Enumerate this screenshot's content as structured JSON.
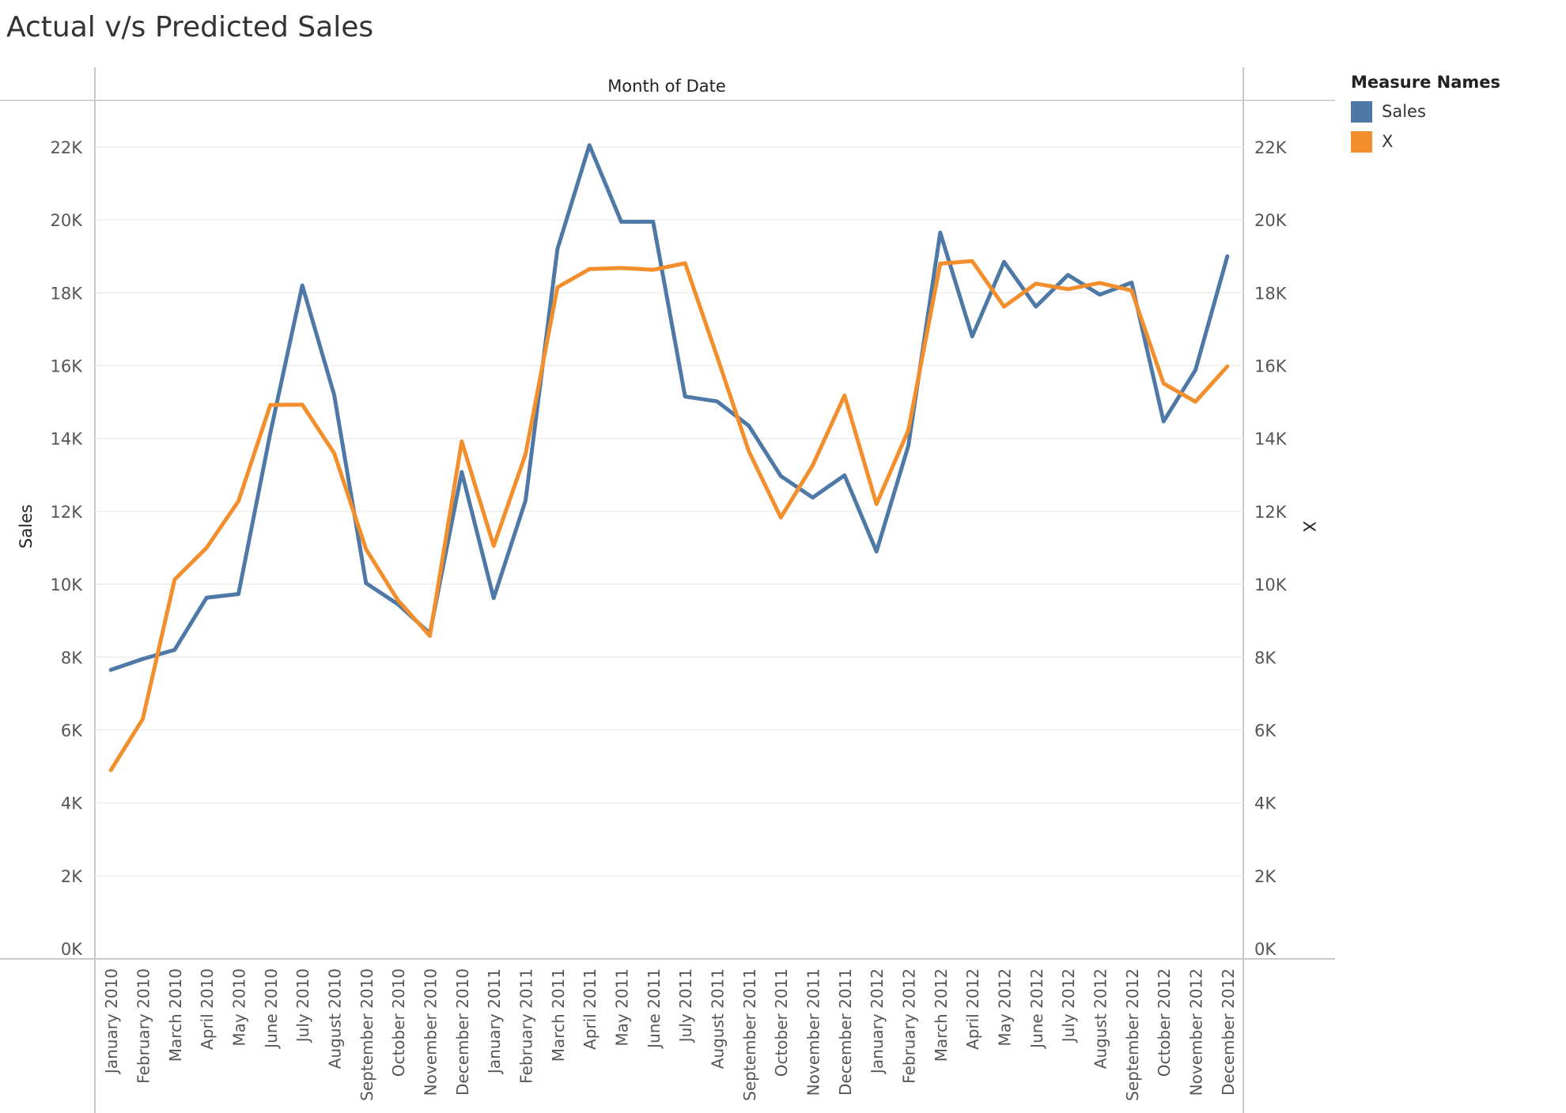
{
  "title": "Actual v/s Predicted Sales",
  "header_label": "Month of Date",
  "legend": {
    "title": "Measure Names",
    "items": [
      {
        "label": "Sales",
        "color": "#4e79a7"
      },
      {
        "label": "X",
        "color": "#f28e2b"
      }
    ]
  },
  "chart_data": {
    "type": "line",
    "title": "Actual v/s Predicted Sales",
    "xlabel": "Month of Date",
    "ylabel": "Sales",
    "ylabel_right": "X",
    "ylim": [
      0,
      22000
    ],
    "yticks": [
      0,
      2000,
      4000,
      6000,
      8000,
      10000,
      12000,
      14000,
      16000,
      18000,
      20000,
      22000
    ],
    "ytick_labels": [
      "0K",
      "2K",
      "4K",
      "6K",
      "8K",
      "10K",
      "12K",
      "14K",
      "16K",
      "18K",
      "20K",
      "22K"
    ],
    "grid": true,
    "legend_position": "top-right",
    "categories": [
      "January 2010",
      "February 2010",
      "March 2010",
      "April 2010",
      "May 2010",
      "June 2010",
      "July 2010",
      "August 2010",
      "September 2010",
      "October 2010",
      "November 2010",
      "December 2010",
      "January 2011",
      "February 2011",
      "March 2011",
      "April 2011",
      "May 2011",
      "June 2011",
      "July 2011",
      "August 2011",
      "September 2011",
      "October 2011",
      "November 2011",
      "December 2011",
      "January 2012",
      "February 2012",
      "March 2012",
      "April 2012",
      "May 2012",
      "June 2012",
      "July 2012",
      "August 2012",
      "September 2012",
      "October 2012",
      "November 2012",
      "December 2012"
    ],
    "series": [
      {
        "name": "Sales",
        "color": "#4e79a7",
        "values": [
          7650,
          7950,
          8200,
          9630,
          9730,
          14150,
          18200,
          15200,
          10030,
          9450,
          8650,
          13080,
          9620,
          12300,
          19200,
          22050,
          19950,
          19950,
          15150,
          15020,
          14350,
          12970,
          12380,
          12990,
          10900,
          13800,
          19650,
          16800,
          18850,
          17620,
          18490,
          17950,
          18280,
          14470,
          15880,
          19000
        ]
      },
      {
        "name": "X",
        "color": "#f28e2b",
        "values": [
          4900,
          6300,
          10130,
          11000,
          12280,
          14920,
          14930,
          13600,
          10960,
          9560,
          8580,
          13920,
          11050,
          13570,
          18150,
          18650,
          18680,
          18630,
          18810,
          16260,
          13650,
          11830,
          13260,
          15180,
          12200,
          14230,
          18800,
          18870,
          17620,
          18250,
          18100,
          18270,
          18060,
          15510,
          15010,
          15980
        ]
      }
    ]
  }
}
